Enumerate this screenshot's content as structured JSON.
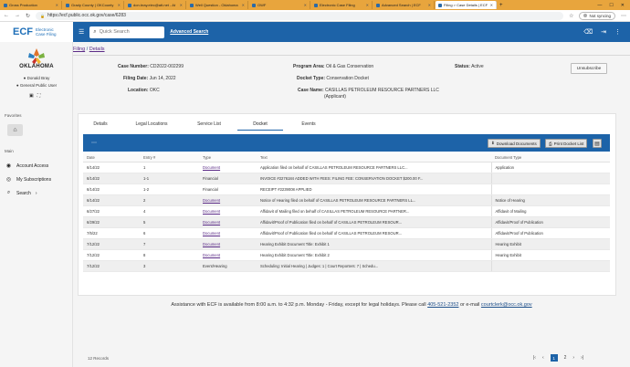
{
  "browser": {
    "tabs": [
      {
        "label": "Gross Production"
      },
      {
        "label": "Grady County | OKCounty"
      },
      {
        "label": "don.bray.elec@att.net - At"
      },
      {
        "label": "Well Question - Oklahoma"
      },
      {
        "label": "OWF"
      },
      {
        "label": "Electronic Case Filing"
      },
      {
        "label": "Advanced Search | ECF"
      },
      {
        "label": "Filing > Case Details | ECF"
      }
    ],
    "url": "https://ecf.public.occ.ok.gov/case/6283",
    "sync_label": "Not syncing"
  },
  "header": {
    "logo_text": "ECF",
    "logo_sub1": "Electronic",
    "logo_sub2": "Case Filing",
    "search_placeholder": "Quick Search",
    "advanced_search": "Advanced Search"
  },
  "sidebar": {
    "state_name": "OKLAHOMA",
    "user_name": "Donald Bray",
    "user_role": "General Public User",
    "favorites_label": "Favorites",
    "main_label": "Main",
    "items": [
      {
        "label": "Account Access",
        "icon": "account-circle-icon"
      },
      {
        "label": "My Subscriptions",
        "icon": "globe-icon"
      },
      {
        "label": "Search",
        "icon": "search-icon"
      }
    ]
  },
  "breadcrumb": {
    "filing": "Filing",
    "sep": "/",
    "details": "Details"
  },
  "case": {
    "case_number_label": "Case Number:",
    "case_number": "CD2022-002299",
    "filing_date_label": "Filing Date:",
    "filing_date": "Jun 14, 2022",
    "location_label": "Location:",
    "location": "OKC",
    "program_area_label": "Program Area:",
    "program_area": "Oil & Gas Conservation",
    "docket_type_label": "Docket Type:",
    "docket_type": "Conservation Docket",
    "case_name_label": "Case Name:",
    "case_name_1": "CASILLAS PETROLEUM RESOURCE PARTNERS LLC",
    "case_name_2": "(Applicant)",
    "status_label": "Status:",
    "status": "Active",
    "unsubscribe": "Unsubscribe"
  },
  "tabs": [
    "Details",
    "Legal Locations",
    "Service List",
    "Docket",
    "Events"
  ],
  "selected_tab": "Docket",
  "toolbar": {
    "download": "Download Documents",
    "print": "Print Docket List"
  },
  "table": {
    "headers": [
      "Date",
      "Entry #",
      "Type",
      "Text",
      "Document Type"
    ],
    "rows": [
      {
        "date": "6/14/22",
        "entry": "1",
        "type": "Document",
        "text": "Application filed on behalf of CASILLAS PETROLEUM RESOURCE PARTNERS LLC...",
        "doctype": "Application"
      },
      {
        "date": "6/14/22",
        "entry": "1-1",
        "type": "Financial",
        "text": "INVOICE #2276184 ADDED WITH FEES: FILING FEE: CONSERVATION DOCKET $200.00 F...",
        "doctype": ""
      },
      {
        "date": "6/14/22",
        "entry": "1-2",
        "type": "Financial",
        "text": "RECEIPT #2239008 APPLIED",
        "doctype": ""
      },
      {
        "date": "6/14/22",
        "entry": "2",
        "type": "Document",
        "text": "Notice of Hearing filed on behalf of CASILLAS PETROLEUM RESOURCE PARTNERS LL...",
        "doctype": "Notice of Hearing"
      },
      {
        "date": "6/27/22",
        "entry": "4",
        "type": "Document",
        "text": "Affidavit of Mailing filed on behalf of CASILLAS PETROLEUM RESOURCE PARTNER...",
        "doctype": "Affidavit of Mailing"
      },
      {
        "date": "6/29/22",
        "entry": "5",
        "type": "Document",
        "text": "Affidavit/Proof of Publication filed on behalf of CASILLAS PETROLEUM RESOUR...",
        "doctype": "Affidavit/Proof of Publication"
      },
      {
        "date": "7/5/22",
        "entry": "6",
        "type": "Document",
        "text": "Affidavit/Proof of Publication filed on behalf of CASILLAS PETROLEUM RESOUR...",
        "doctype": "Affidavit/Proof of Publication"
      },
      {
        "date": "7/12/22",
        "entry": "7",
        "type": "Document",
        "text": "Hearing Exhibit Document Title: Exhibit 1",
        "doctype": "Hearing Exhibit"
      },
      {
        "date": "7/12/22",
        "entry": "8",
        "type": "Document",
        "text": "Hearing Exhibit Document Title: Exhibit 2",
        "doctype": "Hearing Exhibit"
      },
      {
        "date": "7/12/22",
        "entry": "3",
        "type": "Event/Hearing",
        "text": "Scheduling: Initial Hearing | Judges: 1 | Court Reporters: 7 | Schedu...",
        "doctype": ""
      }
    ]
  },
  "footer": {
    "records": "12 Records",
    "current_page": "1",
    "next_page": "2"
  },
  "assistance": {
    "text_before": "Assistance with ECF is available from 8:00 a.m. to 4:32 p.m. Monday - Friday, except for legal holidays. Please call",
    "phone": "405-521-2352",
    "or_email": "or e-mail",
    "email": "courtclerk@occ.ok.gov"
  }
}
